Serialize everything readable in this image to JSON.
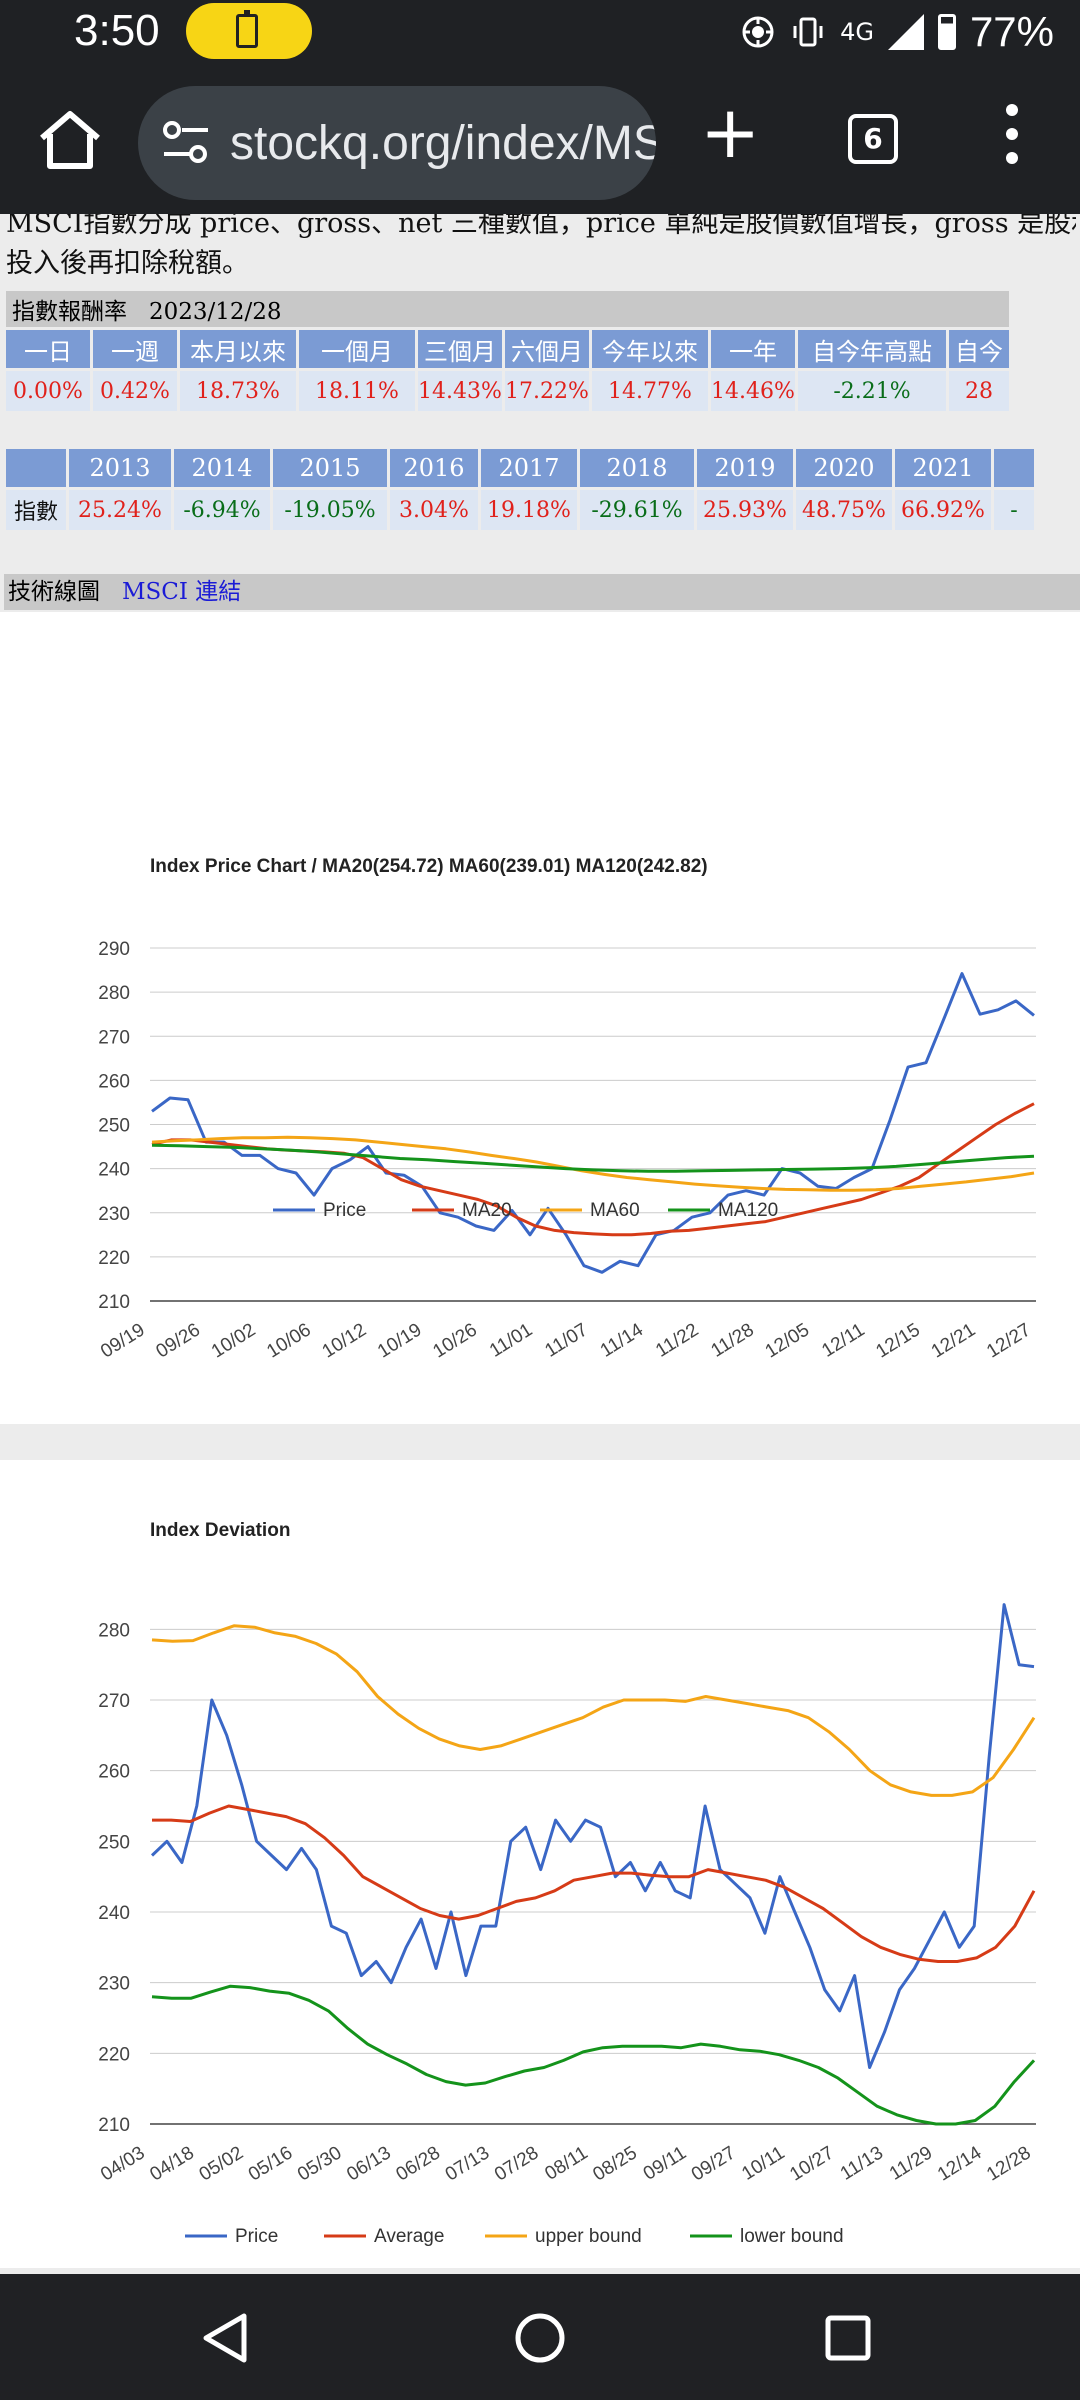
{
  "status": {
    "time": "3:50",
    "net": "4G",
    "battery_pct": "77%",
    "icons": [
      "battery-saver-icon",
      "hotspot-icon",
      "vibrate-icon",
      "signal-icon",
      "battery-icon"
    ]
  },
  "browser": {
    "url": "stockq.org/index/MSCI",
    "tab_count": "6",
    "icons": [
      "home-icon",
      "site-settings-icon",
      "new-tab-icon",
      "tab-switcher-icon",
      "overflow-menu-icon"
    ]
  },
  "intro": {
    "line1": "MSCI指數分成 price、gross、net 三種數值，price 單純是股價數值增長，gross 是股利再投入，net 則是股利再",
    "line2": "投入後再扣除稅額。"
  },
  "returns": {
    "title": "指數報酬率",
    "date": "2023/12/28",
    "headers": [
      "一日",
      "一週",
      "本月以來",
      "一個月",
      "三個月",
      "六個月",
      "今年以來",
      "一年",
      "自今年高點",
      "自今"
    ],
    "values": [
      {
        "v": "0.00%",
        "c": "red"
      },
      {
        "v": "0.42%",
        "c": "red"
      },
      {
        "v": "18.73%",
        "c": "red"
      },
      {
        "v": "18.11%",
        "c": "red"
      },
      {
        "v": "14.43%",
        "c": "red"
      },
      {
        "v": "17.22%",
        "c": "red"
      },
      {
        "v": "14.77%",
        "c": "red"
      },
      {
        "v": "14.46%",
        "c": "red"
      },
      {
        "v": "-2.21%",
        "c": "green"
      },
      {
        "v": "28",
        "c": "red"
      }
    ]
  },
  "yearly": {
    "row_label": "指數",
    "years": [
      "2013",
      "2014",
      "2015",
      "2016",
      "2017",
      "2018",
      "2019",
      "2020",
      "2021",
      ""
    ],
    "values": [
      {
        "v": "25.24%",
        "c": "red"
      },
      {
        "v": "-6.94%",
        "c": "green"
      },
      {
        "v": "-19.05%",
        "c": "green"
      },
      {
        "v": "3.04%",
        "c": "red"
      },
      {
        "v": "19.18%",
        "c": "red"
      },
      {
        "v": "-29.61%",
        "c": "green"
      },
      {
        "v": "25.93%",
        "c": "red"
      },
      {
        "v": "48.75%",
        "c": "red"
      },
      {
        "v": "66.92%",
        "c": "red"
      },
      {
        "v": "-",
        "c": "green"
      }
    ]
  },
  "tech": {
    "label": "技術線圖",
    "link": "MSCI 連結"
  },
  "colors": {
    "price": "#3a67c6",
    "ma20": "#d63b17",
    "ma60": "#f4a516",
    "ma120": "#14931b",
    "header_bg": "#7b9bd4",
    "cell_bg": "#dde6f3"
  },
  "chart_data": [
    {
      "type": "line",
      "title": "Index Price Chart / MA20(254.72) MA60(239.01) MA120(242.82)",
      "x_ticks": [
        "09/19",
        "09/26",
        "10/02",
        "10/06",
        "10/12",
        "10/19",
        "10/26",
        "11/01",
        "11/07",
        "11/14",
        "11/22",
        "11/28",
        "12/05",
        "12/11",
        "12/15",
        "12/21",
        "12/27"
      ],
      "ylim": [
        210,
        290
      ],
      "y_ticks": [
        210,
        220,
        230,
        240,
        250,
        260,
        270,
        280,
        290
      ],
      "grid": true,
      "legend": "bottom",
      "series": [
        {
          "name": "Price",
          "values": [
            253,
            256,
            255.6,
            246,
            246,
            243,
            243,
            240,
            239,
            234,
            240,
            242,
            245,
            239,
            238.5,
            236,
            230,
            229,
            227,
            226,
            230.5,
            225,
            231,
            225,
            218,
            216.5,
            219,
            218,
            225,
            226,
            229,
            230,
            234,
            235,
            234,
            240,
            239,
            236,
            235.5,
            238,
            240,
            251,
            263,
            264,
            274,
            284.2,
            275,
            276,
            278,
            274.72
          ]
        },
        {
          "name": "MA20",
          "values": [
            245.5,
            246.5,
            246.5,
            246,
            245.5,
            245,
            244.5,
            244.2,
            244,
            243.8,
            243.5,
            242.5,
            240,
            237.5,
            236,
            235,
            234,
            233,
            231.5,
            229,
            227,
            226,
            225.5,
            225.2,
            225,
            225,
            225.3,
            225.8,
            226,
            226.5,
            227,
            227.5,
            228,
            229,
            230,
            231,
            232,
            233,
            234.5,
            236,
            238,
            241,
            244,
            247,
            250,
            252.5,
            254.72
          ]
        },
        {
          "name": "MA60",
          "values": [
            246,
            246.3,
            246.5,
            246.8,
            247,
            247,
            247.1,
            247,
            246.8,
            246.5,
            246,
            245.5,
            245,
            244.5,
            243.8,
            243,
            242.3,
            241.5,
            240.5,
            239.5,
            238.7,
            238,
            237.5,
            237,
            236.5,
            236.1,
            235.8,
            235.5,
            235.3,
            235.2,
            235.1,
            235.1,
            235.2,
            235.5,
            236,
            236.5,
            237,
            237.6,
            238.2,
            239.01
          ]
        },
        {
          "name": "MA120",
          "values": [
            245.3,
            245.2,
            245,
            244.8,
            244.5,
            244.2,
            243.8,
            243.3,
            242.8,
            242.3,
            242,
            241.6,
            241.2,
            240.8,
            240.4,
            240,
            239.7,
            239.5,
            239.4,
            239.4,
            239.5,
            239.6,
            239.7,
            239.8,
            239.9,
            240,
            240.2,
            240.5,
            241,
            241.5,
            242,
            242.5,
            242.82
          ]
        }
      ]
    },
    {
      "type": "line",
      "title": "Index Deviation",
      "x_ticks": [
        "04/03",
        "04/18",
        "05/02",
        "05/16",
        "05/30",
        "06/13",
        "06/28",
        "07/13",
        "07/28",
        "08/11",
        "08/25",
        "09/11",
        "09/27",
        "10/11",
        "10/27",
        "11/13",
        "11/29",
        "12/14",
        "12/28"
      ],
      "ylim": [
        210,
        285
      ],
      "y_ticks": [
        210,
        220,
        230,
        240,
        250,
        260,
        270,
        280
      ],
      "grid": true,
      "legend": "bottom",
      "series": [
        {
          "name": "Price",
          "values": [
            248,
            250,
            247,
            255,
            270,
            265,
            258,
            250,
            248,
            246,
            249,
            246,
            238,
            237,
            231,
            233,
            230,
            235,
            239,
            232,
            240,
            231,
            238,
            238,
            250,
            252,
            246,
            253,
            250,
            253,
            252,
            245,
            247,
            243,
            247,
            243,
            242,
            255,
            246,
            244,
            242,
            237,
            245,
            240,
            235,
            229,
            226,
            231,
            218,
            223,
            229,
            232,
            236,
            240,
            235,
            238,
            262,
            283.5,
            275,
            274.72
          ]
        },
        {
          "name": "Average",
          "values": [
            253,
            253,
            252.8,
            254,
            255,
            254.5,
            254,
            253.5,
            252.5,
            250.5,
            248,
            245,
            243.5,
            242,
            240.5,
            239.5,
            239,
            239.5,
            240.5,
            241.5,
            242,
            243,
            244.5,
            245,
            245.5,
            245.5,
            245.2,
            245,
            245,
            246,
            245.5,
            245,
            244.5,
            243.5,
            242,
            240.5,
            238.5,
            236.5,
            235,
            234,
            233.3,
            233,
            233,
            233.5,
            235,
            238,
            243
          ]
        },
        {
          "name": "upper bound",
          "values": [
            278.5,
            278.3,
            278.4,
            279.5,
            280.5,
            280.3,
            279.5,
            279,
            278,
            276.5,
            274,
            270.5,
            268,
            266,
            264.5,
            263.5,
            263,
            263.5,
            264.5,
            265.5,
            266.5,
            267.5,
            269,
            270,
            270,
            270,
            269.8,
            270.5,
            270,
            269.5,
            269,
            268.5,
            267.5,
            265.5,
            263,
            260,
            258,
            257,
            256.5,
            256.5,
            257,
            259,
            263,
            267.5
          ]
        },
        {
          "name": "lower bound",
          "values": [
            228,
            227.8,
            227.8,
            228.7,
            229.5,
            229.3,
            228.8,
            228.5,
            227.5,
            226,
            223.5,
            221.3,
            219.8,
            218.5,
            217,
            216,
            215.5,
            215.8,
            216.7,
            217.5,
            218,
            219,
            220.2,
            220.8,
            221,
            221,
            221,
            220.8,
            221.3,
            221,
            220.5,
            220.3,
            219.8,
            219,
            218,
            216.5,
            214.5,
            212.5,
            211.3,
            210.5,
            210,
            210,
            210.5,
            212.5,
            216,
            219
          ]
        }
      ]
    }
  ]
}
